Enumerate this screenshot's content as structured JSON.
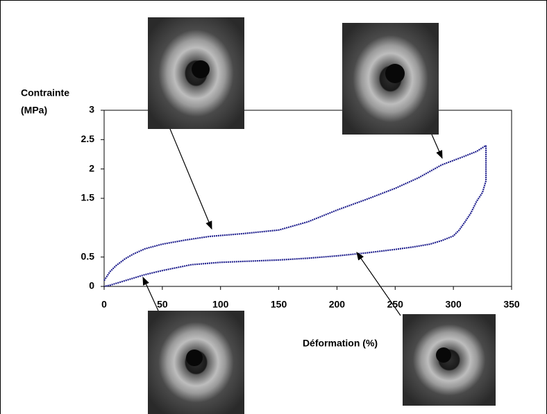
{
  "chart_data": {
    "type": "line",
    "ylabel": [
      "Contrainte",
      "(MPa)"
    ],
    "xlabel": "Déformation (%)",
    "xlim": [
      0,
      350
    ],
    "xticks": [
      0,
      50,
      100,
      150,
      200,
      250,
      300,
      350
    ],
    "ylim": [
      0,
      3
    ],
    "yticks": [
      0,
      0.5,
      1.5,
      2,
      2.5,
      3
    ],
    "color": "#1c1c8c",
    "series": [
      {
        "color": "#1c1c8c",
        "x": [
          0,
          5,
          10,
          18,
          25,
          35,
          50,
          70,
          90,
          120,
          150,
          175,
          200,
          225,
          250,
          270,
          290,
          310,
          320,
          328
        ],
        "values": [
          0.1,
          0.25,
          0.35,
          0.47,
          0.55,
          0.64,
          0.72,
          0.79,
          0.85,
          0.9,
          0.96,
          1.1,
          1.3,
          1.48,
          1.67,
          1.85,
          2.07,
          2.22,
          2.3,
          2.4
        ]
      },
      {
        "color": "#1c1c8c",
        "x": [
          328,
          328,
          325,
          320,
          315,
          310,
          305,
          300,
          290,
          280,
          265,
          250,
          225,
          200,
          175,
          150,
          125,
          100,
          75,
          50,
          35,
          25,
          15,
          10,
          5,
          0
        ],
        "values": [
          2.4,
          1.8,
          1.6,
          1.45,
          1.25,
          1.1,
          0.96,
          0.86,
          0.78,
          0.72,
          0.67,
          0.63,
          0.57,
          0.52,
          0.48,
          0.45,
          0.43,
          0.41,
          0.37,
          0.27,
          0.2,
          0.14,
          0.08,
          0.05,
          0.02,
          0
        ]
      }
    ]
  }
}
